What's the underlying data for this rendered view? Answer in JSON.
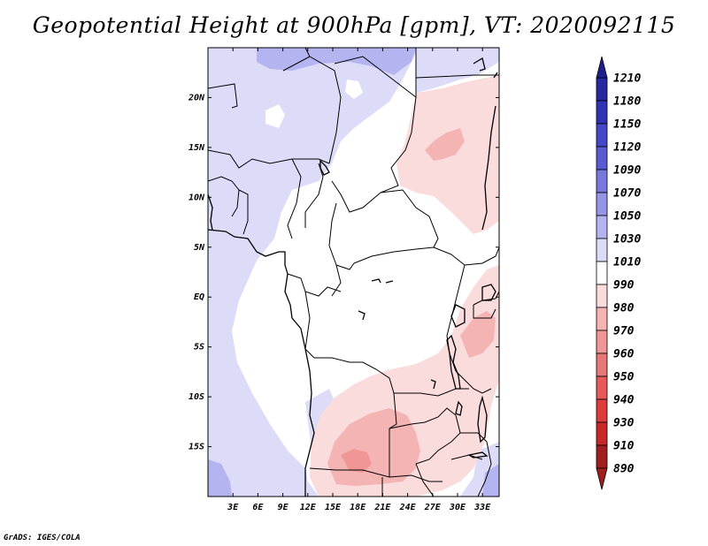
{
  "title": "Geopotential Height at 900hPa [gpm], VT: 2020092115",
  "footer": "GrADS: IGES/COLA",
  "map": {
    "lon_range": [
      0,
      35
    ],
    "lat_range": [
      -20,
      25
    ],
    "lat_ticks": [
      {
        "value": 20,
        "label": "20N"
      },
      {
        "value": 15,
        "label": "15N"
      },
      {
        "value": 10,
        "label": "10N"
      },
      {
        "value": 5,
        "label": "5N"
      },
      {
        "value": 0,
        "label": "EQ"
      },
      {
        "value": -5,
        "label": "5S"
      },
      {
        "value": -10,
        "label": "10S"
      },
      {
        "value": -15,
        "label": "15S"
      }
    ],
    "lon_ticks": [
      {
        "value": 3,
        "label": "3E"
      },
      {
        "value": 6,
        "label": "6E"
      },
      {
        "value": 9,
        "label": "9E"
      },
      {
        "value": 12,
        "label": "12E"
      },
      {
        "value": 15,
        "label": "15E"
      },
      {
        "value": 18,
        "label": "18E"
      },
      {
        "value": 21,
        "label": "21E"
      },
      {
        "value": 24,
        "label": "24E"
      },
      {
        "value": 27,
        "label": "27E"
      },
      {
        "value": 30,
        "label": "30E"
      },
      {
        "value": 33,
        "label": "33E"
      }
    ]
  },
  "colorbar": {
    "levels": [
      {
        "label": "1210",
        "color": "#1e1e8c"
      },
      {
        "label": "1180",
        "color": "#2828a0"
      },
      {
        "label": "1150",
        "color": "#3232b4"
      },
      {
        "label": "1120",
        "color": "#4646c8"
      },
      {
        "label": "1090",
        "color": "#5a5ad2"
      },
      {
        "label": "1070",
        "color": "#7878dc"
      },
      {
        "label": "1050",
        "color": "#9696e6"
      },
      {
        "label": "1030",
        "color": "#b4b4f0"
      },
      {
        "label": "1010",
        "color": "#dcdcf8"
      },
      {
        "label": "990",
        "color": "#ffffff"
      },
      {
        "label": "980",
        "color": "#fadcdc"
      },
      {
        "label": "970",
        "color": "#f5b4b4"
      },
      {
        "label": "960",
        "color": "#f09696"
      },
      {
        "label": "950",
        "color": "#e67878"
      },
      {
        "label": "940",
        "color": "#e65a5a"
      },
      {
        "label": "930",
        "color": "#dc3c3c"
      },
      {
        "label": "910",
        "color": "#c82828"
      },
      {
        "label": "890",
        "color": "#a01e1e"
      }
    ]
  }
}
